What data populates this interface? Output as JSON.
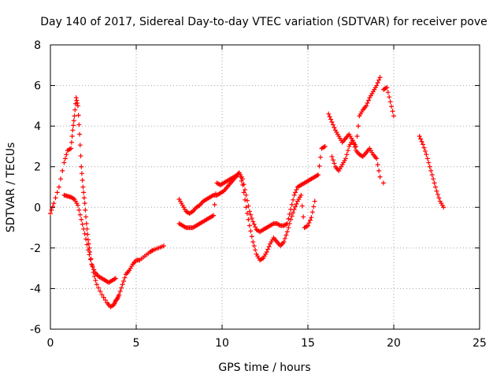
{
  "chart_data": {
    "type": "scatter",
    "title": "Day 140 of 2017, Sidereal Day-to-day VTEC variation (SDTVAR) for receiver pove",
    "xlabel": "GPS time / hours",
    "ylabel": "SDTVAR / TECUs",
    "xlim": [
      0,
      25
    ],
    "ylim": [
      -6,
      8
    ],
    "xticks": [
      0,
      5,
      10,
      15,
      20,
      25
    ],
    "yticks": [
      -6,
      -4,
      -2,
      0,
      2,
      4,
      6,
      8
    ],
    "grid": true,
    "marker": "+",
    "marker_color": "#ff0000",
    "series": [
      {
        "x": [
          0.0,
          0.2,
          0.5,
          0.8,
          1.0,
          1.2,
          1.3,
          1.4,
          1.5,
          1.6,
          1.7,
          1.8,
          1.9,
          2.0,
          2.1,
          2.2,
          2.3,
          2.5,
          2.7,
          3.0,
          3.3,
          3.5,
          3.7,
          3.8,
          3.9,
          4.0,
          4.2,
          4.4,
          4.6,
          4.8,
          5.0,
          5.2,
          5.5,
          5.8,
          6.0,
          6.3,
          6.6
        ],
        "y": [
          -0.3,
          0.2,
          1.0,
          2.2,
          2.8,
          2.9,
          3.8,
          4.5,
          5.4,
          5.0,
          3.6,
          2.0,
          1.0,
          0.2,
          -0.8,
          -1.6,
          -2.2,
          -3.2,
          -3.8,
          -4.3,
          -4.7,
          -4.9,
          -4.8,
          -4.6,
          -4.5,
          -4.3,
          -3.8,
          -3.3,
          -3.1,
          -2.8,
          -2.6,
          -2.6,
          -2.4,
          -2.2,
          -2.1,
          -2.0,
          -1.9
        ]
      },
      {
        "x": [
          0.8,
          1.0,
          1.2,
          1.4,
          1.6,
          1.8,
          2.0,
          2.2,
          2.4,
          2.6,
          2.8,
          3.0,
          3.2,
          3.4,
          3.6,
          3.8
        ],
        "y": [
          0.6,
          0.55,
          0.5,
          0.4,
          0.1,
          -0.6,
          -1.3,
          -2.1,
          -2.8,
          -3.2,
          -3.4,
          -3.5,
          -3.6,
          -3.7,
          -3.6,
          -3.5
        ]
      },
      {
        "x": [
          7.5,
          7.7,
          7.9,
          8.1,
          8.3,
          8.5,
          8.7,
          8.9,
          9.1,
          9.3,
          9.5,
          9.7,
          9.9,
          10.1,
          10.3,
          10.5,
          10.7,
          10.9,
          11.0,
          11.2,
          11.4,
          11.6,
          11.8,
          12.0,
          12.2,
          12.4,
          12.6,
          12.8,
          13.0,
          13.2,
          13.4,
          13.6,
          13.8,
          14.0,
          14.2,
          14.4,
          14.6,
          14.8,
          15.0,
          15.2,
          15.4,
          15.6,
          15.8,
          16.0
        ],
        "y": [
          0.4,
          0.1,
          -0.2,
          -0.3,
          -0.2,
          0.0,
          0.1,
          0.3,
          0.4,
          0.5,
          0.6,
          0.6,
          0.7,
          0.8,
          1.0,
          1.2,
          1.4,
          1.6,
          1.7,
          1.4,
          0.6,
          -0.2,
          -0.7,
          -1.1,
          -1.2,
          -1.1,
          -1.0,
          -0.9,
          -0.8,
          -0.8,
          -0.9,
          -0.9,
          -0.8,
          -0.1,
          0.6,
          1.0,
          1.1,
          1.2,
          1.3,
          1.4,
          1.5,
          1.6,
          2.9,
          3.0
        ]
      },
      {
        "x": [
          7.5,
          7.7,
          7.9,
          8.1,
          8.3,
          8.5,
          8.7,
          8.9,
          9.1,
          9.3,
          9.5,
          9.7,
          9.9,
          10.1,
          10.3,
          10.5,
          10.7,
          10.9,
          11.0,
          11.2,
          11.4,
          11.6,
          11.8,
          12.0,
          12.2,
          12.4,
          12.6,
          12.8,
          13.0,
          13.2,
          13.4,
          13.6,
          13.8,
          14.0,
          14.2,
          14.4,
          14.6,
          14.8,
          15.0,
          15.2,
          15.4
        ],
        "y": [
          -0.8,
          -0.9,
          -1.0,
          -1.0,
          -1.0,
          -0.9,
          -0.8,
          -0.7,
          -0.6,
          -0.5,
          -0.4,
          1.2,
          1.1,
          1.2,
          1.3,
          1.4,
          1.5,
          1.6,
          1.7,
          1.1,
          0.0,
          -0.9,
          -1.7,
          -2.3,
          -2.6,
          -2.5,
          -2.2,
          -1.8,
          -1.5,
          -1.7,
          -1.9,
          -1.7,
          -1.2,
          -0.6,
          -0.1,
          0.3,
          0.6,
          -1.0,
          -0.9,
          -0.5,
          0.3
        ]
      },
      {
        "x": [
          16.2,
          16.4,
          16.6,
          16.8,
          17.0,
          17.2,
          17.4,
          17.6,
          17.8,
          18.0,
          18.2,
          18.4,
          18.6,
          18.8,
          19.0,
          19.2,
          19.4,
          19.6,
          19.8,
          20.0
        ],
        "y": [
          4.6,
          4.2,
          3.8,
          3.5,
          3.2,
          3.4,
          3.6,
          3.3,
          2.8,
          2.6,
          2.5,
          2.7,
          2.9,
          2.6,
          2.4,
          1.5,
          5.8,
          5.9,
          5.2,
          4.5
        ]
      },
      {
        "x": [
          16.4,
          16.6,
          16.8,
          17.0,
          17.2,
          17.4,
          17.6,
          17.8,
          18.0,
          18.2,
          18.4,
          18.6,
          18.8,
          19.0,
          19.2,
          19.4
        ],
        "y": [
          2.5,
          2.0,
          1.8,
          2.1,
          2.4,
          3.0,
          3.3,
          3.0,
          4.5,
          4.8,
          5.0,
          5.4,
          5.7,
          6.0,
          6.4,
          1.2
        ]
      },
      {
        "x": [
          21.5,
          21.7,
          21.9,
          22.1,
          22.3,
          22.5,
          22.7,
          22.9
        ],
        "y": [
          3.5,
          3.1,
          2.6,
          2.0,
          1.4,
          0.8,
          0.3,
          0.0
        ]
      }
    ]
  }
}
